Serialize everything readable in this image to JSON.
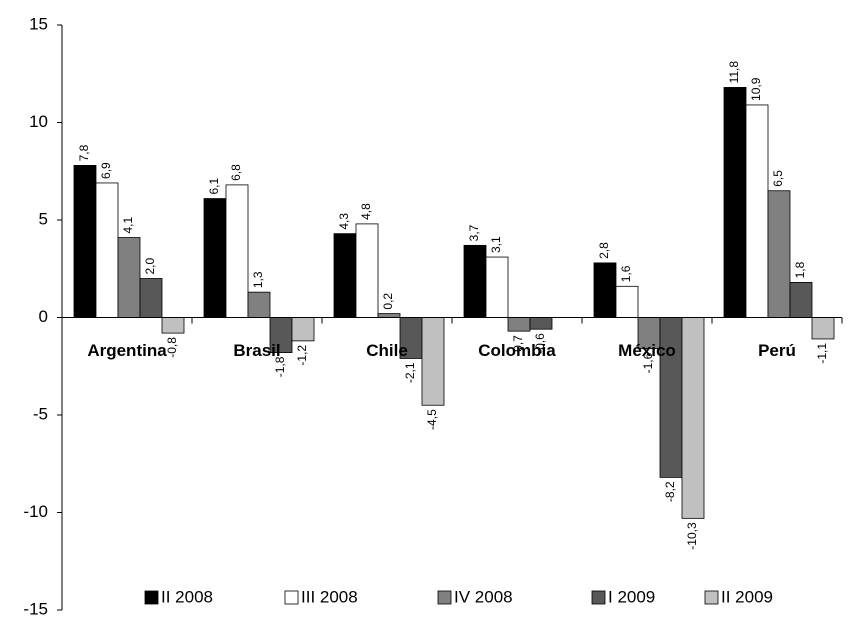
{
  "chart_data": {
    "type": "bar",
    "categories": [
      "Argentina",
      "Brasil",
      "Chile",
      "Colombia",
      "México",
      "Perú"
    ],
    "series": [
      {
        "name": "II 2008",
        "color": "#000000",
        "values": [
          7.8,
          6.1,
          4.3,
          3.7,
          2.8,
          11.8
        ],
        "value_labels": [
          "7,8",
          "6,1",
          "4,3",
          "3,7",
          "2,8",
          "11,8"
        ]
      },
      {
        "name": "III 2008",
        "color": "#ffffff",
        "values": [
          6.9,
          6.8,
          4.8,
          3.1,
          1.6,
          10.9
        ],
        "value_labels": [
          "6,9",
          "6,8",
          "4,8",
          "3,1",
          "1,6",
          "10,9"
        ]
      },
      {
        "name": "IV 2008",
        "color": "#808080",
        "values": [
          4.1,
          1.3,
          0.2,
          -0.7,
          -1.6,
          6.5
        ],
        "value_labels": [
          "4,1",
          "1,3",
          "0,2",
          "-0,7",
          "-1,6",
          "6,5"
        ]
      },
      {
        "name": "I 2009",
        "color": "#585858",
        "values": [
          2.0,
          -1.8,
          -2.1,
          -0.6,
          -8.2,
          1.8
        ],
        "value_labels": [
          "2,0",
          "-1,8",
          "-2,1",
          "-0,6",
          "-8,2",
          "1,8"
        ]
      },
      {
        "name": "II 2009",
        "color": "#c0c0c0",
        "values": [
          -0.8,
          -1.2,
          -4.5,
          null,
          -10.3,
          -1.1
        ],
        "value_labels": [
          "-0,8",
          "-1,2",
          "-4,5",
          null,
          "-10,3",
          "-1,1"
        ]
      }
    ],
    "ylim": [
      -15,
      15
    ],
    "yticks": [
      -15,
      -10,
      -5,
      0,
      5,
      10,
      15
    ]
  }
}
